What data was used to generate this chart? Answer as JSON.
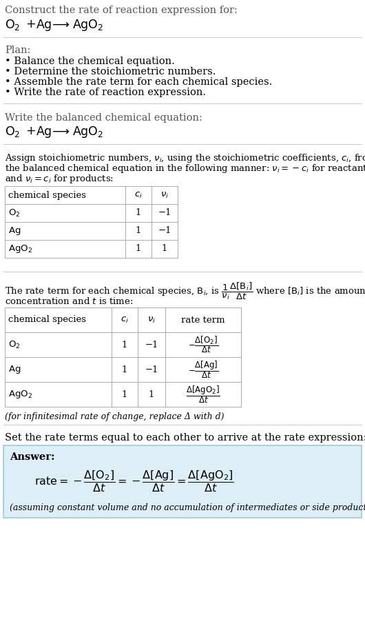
{
  "title": "Construct the rate of reaction expression for:",
  "bg_color": "#ffffff",
  "plan_title": "Plan:",
  "plan_items": [
    "• Balance the chemical equation.",
    "• Determine the stoichiometric numbers.",
    "• Assemble the rate term for each chemical species.",
    "• Write the rate of reaction expression."
  ],
  "balanced_label": "Write the balanced chemical equation:",
  "table1_headers": [
    "chemical species",
    "c_i",
    "v_i"
  ],
  "table1_rows": [
    [
      "O2",
      "1",
      "−1"
    ],
    [
      "Ag",
      "1",
      "−1"
    ],
    [
      "AgO2",
      "1",
      "1"
    ]
  ],
  "table2_headers": [
    "chemical species",
    "c_i",
    "v_i",
    "rate term"
  ],
  "table2_rows": [
    [
      "O2",
      "1",
      "−1",
      "O2"
    ],
    [
      "Ag",
      "1",
      "−1",
      "Ag"
    ],
    [
      "AgO2",
      "1",
      "1",
      "AgO2"
    ]
  ],
  "infinitesimal_note": "(for infinitesimal rate of change, replace Δ with d)",
  "set_equal_text": "Set the rate terms equal to each other to arrive at the rate expression:",
  "answer_label": "Answer:",
  "answer_note": "(assuming constant volume and no accumulation of intermediates or side products)",
  "text_color": "#000000",
  "gray_text": "#555555",
  "table_border": "#aaaaaa",
  "answer_bg": "#ddeef7",
  "answer_border": "#99ccdd",
  "divider_color": "#cccccc",
  "font_size_main": 10.5,
  "font_size_small": 9.5,
  "font_size_table": 9.5,
  "font_size_note": 9.0
}
